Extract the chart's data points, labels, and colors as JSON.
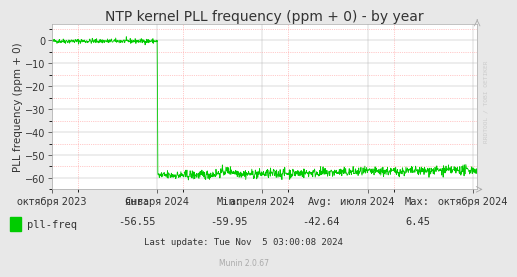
{
  "title": "NTP kernel PLL frequency (ppm + 0) - by year",
  "ylabel": "PLL frequency (ppm + 0)",
  "bg_color": "#e8e8e8",
  "plot_bg_color": "#ffffff",
  "grid_color_major": "#aaaaaa",
  "grid_color_minor": "#ff9999",
  "line_color": "#00cc00",
  "ylim": [
    -65,
    7
  ],
  "yticks": [
    0,
    -10,
    -20,
    -30,
    -40,
    -50,
    -60
  ],
  "x_tick_labels": [
    "октября 2023",
    "января 2024",
    "апреля 2024",
    "июля 2024",
    "октября 2024"
  ],
  "x_tick_positions": [
    0.0,
    0.247,
    0.494,
    0.742,
    0.989
  ],
  "legend_label": "pll-freq",
  "cur": "-56.55",
  "min_val": "-59.95",
  "avg": "-42.64",
  "max_val": "6.45",
  "last_update": "Last update: Tue Nov  5 03:00:08 2024",
  "munin_version": "Munin 2.0.67",
  "watermark": "RRDTOOL / TOBI OETIKER",
  "title_fontsize": 10,
  "axis_label_fontsize": 7.5,
  "tick_fontsize": 7,
  "legend_fontsize": 7.5
}
